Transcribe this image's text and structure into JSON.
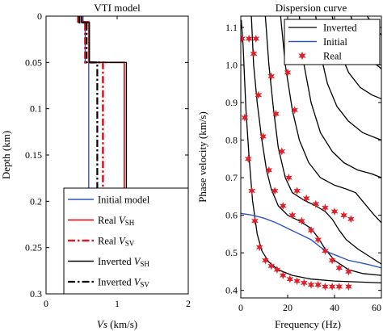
{
  "chart_data": [
    {
      "type": "line",
      "title": "VTI model",
      "xlabel_main": "Vs",
      "xlabel_unit": " (km/s)",
      "ylabel": "Depth (km)",
      "xlim": [
        0,
        2
      ],
      "ylim": [
        0.3,
        0
      ],
      "xticks": [
        0,
        1,
        2
      ],
      "yticks": [
        0,
        0.05,
        0.1,
        0.15,
        0.2,
        0.25,
        0.3
      ],
      "legend": {
        "placement": "bottom",
        "entries": [
          {
            "main": "Initial model",
            "sub": ""
          },
          {
            "main": "Real V",
            "sub": "SH"
          },
          {
            "main": "Real V",
            "sub": "SV"
          },
          {
            "main": "Inverted V",
            "sub": "SH"
          },
          {
            "main": "Inverted V",
            "sub": "SV"
          }
        ]
      },
      "series": [
        {
          "key": "initial",
          "color": "#2f56c6",
          "style": "solid",
          "points": [
            [
              0.52,
              0
            ],
            [
              0.52,
              0.006
            ],
            [
              0.55,
              0.006
            ],
            [
              0.55,
              0.05
            ],
            [
              0.6,
              0.05
            ],
            [
              0.6,
              0.3
            ]
          ]
        },
        {
          "key": "real_sh",
          "color": "#d0202a",
          "style": "solid",
          "points": [
            [
              0.5,
              0
            ],
            [
              0.5,
              0.006
            ],
            [
              0.6,
              0.006
            ],
            [
              0.6,
              0.05
            ],
            [
              1.1,
              0.05
            ],
            [
              1.1,
              0.3
            ]
          ]
        },
        {
          "key": "real_sv",
          "color": "#d0202a",
          "style": "dashdot",
          "points": [
            [
              0.45,
              0
            ],
            [
              0.45,
              0.006
            ],
            [
              0.55,
              0.006
            ],
            [
              0.55,
              0.05
            ],
            [
              0.8,
              0.05
            ],
            [
              0.8,
              0.3
            ]
          ]
        },
        {
          "key": "inv_sh",
          "color": "#000000",
          "style": "solid",
          "points": [
            [
              0.5,
              0
            ],
            [
              0.5,
              0.007
            ],
            [
              0.61,
              0.007
            ],
            [
              0.61,
              0.05
            ],
            [
              1.13,
              0.05
            ],
            [
              1.13,
              0.3
            ]
          ]
        },
        {
          "key": "inv_sv",
          "color": "#000000",
          "style": "dashdot",
          "points": [
            [
              0.47,
              0
            ],
            [
              0.47,
              0.007
            ],
            [
              0.57,
              0.007
            ],
            [
              0.57,
              0.05
            ],
            [
              0.72,
              0.05
            ],
            [
              0.72,
              0.3
            ]
          ]
        }
      ]
    },
    {
      "type": "line",
      "title": "Dispersion curve",
      "xlabel": "Frequency (Hz)",
      "ylabel": "Phase velocity (km/s)",
      "xlim": [
        0,
        60
      ],
      "ylim": [
        0.38,
        1.13
      ],
      "xticks": [
        0,
        20,
        40,
        60
      ],
      "yticks": [
        0.4,
        0.5,
        0.6,
        0.7,
        0.8,
        0.9,
        1.0,
        1.1
      ],
      "legend": {
        "placement": "top-right",
        "entries": [
          {
            "main": "Inverted",
            "key": "inverted"
          },
          {
            "main": "Initial",
            "key": "initial"
          },
          {
            "main": "Real",
            "key": "real"
          }
        ]
      },
      "inverted_curves": [
        [
          [
            0.2,
            1.12
          ],
          [
            1.0,
            1.05
          ],
          [
            2.2,
            0.88
          ],
          [
            3.5,
            0.76
          ],
          [
            5,
            0.64
          ],
          [
            7,
            0.55
          ],
          [
            9,
            0.505
          ],
          [
            12,
            0.475
          ],
          [
            16,
            0.455
          ],
          [
            22,
            0.44
          ],
          [
            30,
            0.43
          ],
          [
            40,
            0.425
          ],
          [
            60,
            0.42
          ]
        ],
        [
          [
            4.5,
            1.13
          ],
          [
            5.5,
            1.0
          ],
          [
            7,
            0.9
          ],
          [
            9,
            0.8
          ],
          [
            11,
            0.72
          ],
          [
            13,
            0.67
          ],
          [
            16,
            0.625
          ],
          [
            20,
            0.6
          ],
          [
            25,
            0.585
          ],
          [
            30,
            0.565
          ],
          [
            33,
            0.54
          ],
          [
            36,
            0.51
          ],
          [
            40,
            0.48
          ],
          [
            46,
            0.455
          ],
          [
            52,
            0.445
          ],
          [
            60,
            0.44
          ]
        ],
        [
          [
            10.5,
            1.13
          ],
          [
            12,
            1.0
          ],
          [
            14,
            0.88
          ],
          [
            16,
            0.78
          ],
          [
            19,
            0.7
          ],
          [
            22,
            0.66
          ],
          [
            27,
            0.64
          ],
          [
            32,
            0.625
          ],
          [
            36,
            0.61
          ],
          [
            39,
            0.59
          ],
          [
            42,
            0.56
          ],
          [
            45,
            0.535
          ],
          [
            50,
            0.51
          ],
          [
            60,
            0.47
          ]
        ],
        [
          [
            17,
            1.13
          ],
          [
            19,
            1.0
          ],
          [
            22,
            0.88
          ],
          [
            25,
            0.8
          ],
          [
            29,
            0.74
          ],
          [
            34,
            0.7
          ],
          [
            40,
            0.68
          ],
          [
            45,
            0.67
          ],
          [
            49,
            0.66
          ],
          [
            53,
            0.63
          ],
          [
            57,
            0.6
          ],
          [
            60,
            0.58
          ]
        ],
        [
          [
            25,
            1.13
          ],
          [
            27,
            1.0
          ],
          [
            30,
            0.9
          ],
          [
            34,
            0.82
          ],
          [
            39,
            0.77
          ],
          [
            44,
            0.74
          ],
          [
            50,
            0.72
          ],
          [
            56,
            0.71
          ],
          [
            60,
            0.7
          ]
        ],
        [
          [
            32,
            1.13
          ],
          [
            34,
            1.03
          ],
          [
            37,
            0.95
          ],
          [
            41,
            0.89
          ],
          [
            46,
            0.85
          ],
          [
            52,
            0.82
          ],
          [
            60,
            0.8
          ]
        ],
        [
          [
            39,
            1.13
          ],
          [
            42,
            1.04
          ],
          [
            46,
            0.98
          ],
          [
            51,
            0.94
          ],
          [
            56,
            0.92
          ],
          [
            60,
            0.91
          ]
        ],
        [
          [
            47,
            1.13
          ],
          [
            50,
            1.06
          ],
          [
            54,
            1.02
          ],
          [
            58,
            1.0
          ],
          [
            60,
            0.99
          ]
        ],
        [
          [
            54,
            1.13
          ],
          [
            57,
            1.1
          ],
          [
            60,
            1.08
          ]
        ]
      ],
      "initial_curve": [
        [
          0,
          0.605
        ],
        [
          5,
          0.6
        ],
        [
          10,
          0.592
        ],
        [
          15,
          0.58
        ],
        [
          20,
          0.565
        ],
        [
          25,
          0.55
        ],
        [
          30,
          0.535
        ],
        [
          34,
          0.515
        ],
        [
          38,
          0.5
        ],
        [
          42,
          0.49
        ],
        [
          46,
          0.48
        ],
        [
          50,
          0.475
        ],
        [
          55,
          0.468
        ],
        [
          60,
          0.46
        ]
      ],
      "real_points": [
        [
          0.5,
          1.07
        ],
        [
          3.5,
          1.07
        ],
        [
          6.5,
          1.07
        ],
        [
          1.7,
          0.86
        ],
        [
          3.2,
          0.75
        ],
        [
          4.7,
          0.665
        ],
        [
          6.0,
          0.585
        ],
        [
          8.0,
          0.515
        ],
        [
          10.5,
          0.48
        ],
        [
          13,
          0.465
        ],
        [
          15.5,
          0.455
        ],
        [
          18,
          0.44
        ],
        [
          21,
          0.43
        ],
        [
          24,
          0.425
        ],
        [
          27,
          0.42
        ],
        [
          30,
          0.415
        ],
        [
          33,
          0.415
        ],
        [
          36,
          0.41
        ],
        [
          39,
          0.41
        ],
        [
          42,
          0.41
        ],
        [
          46,
          0.41
        ],
        [
          5.5,
          1.03
        ],
        [
          7.5,
          0.92
        ],
        [
          9.5,
          0.81
        ],
        [
          12,
          0.72
        ],
        [
          14.5,
          0.665
        ],
        [
          18,
          0.625
        ],
        [
          22,
          0.6
        ],
        [
          26,
          0.585
        ],
        [
          30,
          0.56
        ],
        [
          33,
          0.535
        ],
        [
          36,
          0.505
        ],
        [
          39,
          0.48
        ],
        [
          42,
          0.46
        ],
        [
          46,
          0.45
        ],
        [
          13,
          0.97
        ],
        [
          15,
          0.87
        ],
        [
          17.5,
          0.77
        ],
        [
          20.5,
          0.7
        ],
        [
          24,
          0.665
        ],
        [
          28,
          0.645
        ],
        [
          32,
          0.63
        ],
        [
          36,
          0.62
        ],
        [
          40,
          0.61
        ],
        [
          44,
          0.6
        ],
        [
          47,
          0.59
        ],
        [
          20,
          0.98
        ],
        [
          23,
          0.88
        ]
      ]
    }
  ]
}
